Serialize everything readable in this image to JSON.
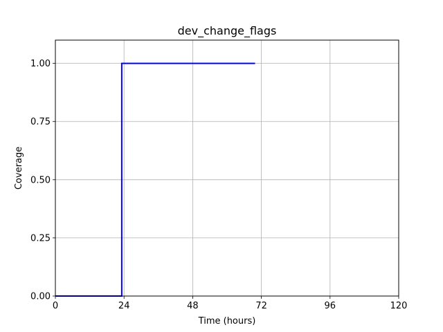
{
  "chart_data": {
    "type": "line",
    "title": "dev_change_flags",
    "xlabel": "Time (hours)",
    "ylabel": "Coverage",
    "xlim": [
      0,
      120
    ],
    "ylim": [
      0,
      1.1
    ],
    "grid": true,
    "xticks": [
      0,
      24,
      48,
      72,
      96,
      120
    ],
    "xtick_labels": [
      "0",
      "24",
      "48",
      "72",
      "96",
      "120"
    ],
    "yticks": [
      0,
      0.25,
      0.5,
      0.75,
      1.0
    ],
    "ytick_labels": [
      "0.00",
      "0.25",
      "0.50",
      "0.75",
      "1.00"
    ],
    "series": [
      {
        "color": "#0000ff",
        "step": true,
        "x": [
          0,
          23.2,
          23.2,
          69.8
        ],
        "y": [
          0,
          0,
          1.0,
          1.0
        ]
      }
    ]
  }
}
